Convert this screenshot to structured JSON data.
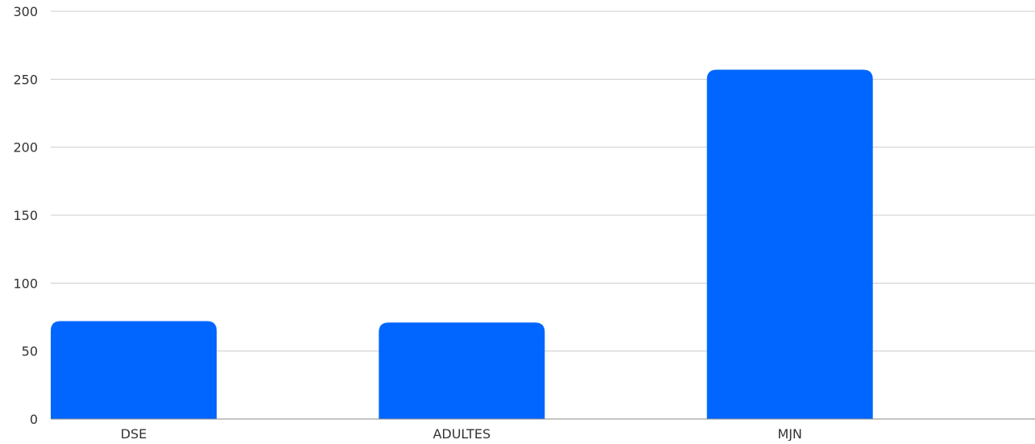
{
  "chart_data": {
    "type": "bar",
    "title": "",
    "xlabel": "",
    "ylabel": "",
    "categories": [
      "DSE",
      "ADULTES",
      "MJN"
    ],
    "values": [
      72,
      71,
      257
    ],
    "ylim": [
      0,
      300
    ],
    "yticks": [
      0,
      50,
      100,
      150,
      200,
      250,
      300
    ],
    "grid": true,
    "legend": "none",
    "bar_color": "#0066ff",
    "grid_color": "#cccccc",
    "axis_color": "#888888",
    "text_color": "#333333"
  }
}
